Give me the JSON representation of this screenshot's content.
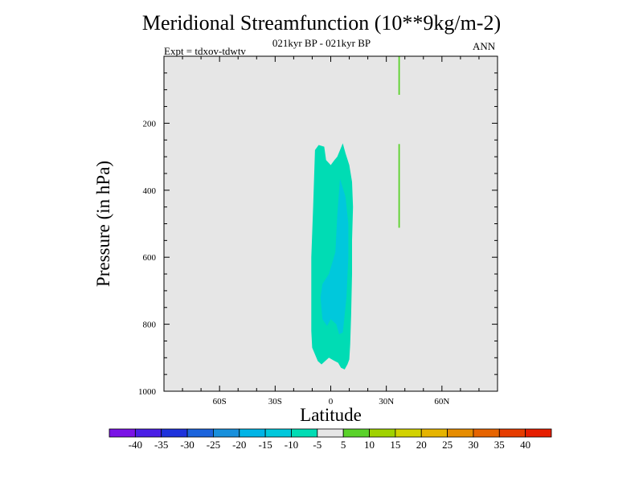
{
  "title": "Meridional Streamfunction (10**9kg/m-2)",
  "subtitle": "021kyr BP - 021kyr BP",
  "expt_label": "Expt = tdxov-tdwtv",
  "season": "ANN",
  "chart_data": {
    "type": "contour",
    "xlabel": "Latitude",
    "ylabel": "Pressure (in hPa)",
    "xlim": [
      -90,
      90
    ],
    "ylim": [
      1000,
      0
    ],
    "x_ticks": [
      {
        "value": -60,
        "label": "60S"
      },
      {
        "value": -30,
        "label": "30S"
      },
      {
        "value": 0,
        "label": "0"
      },
      {
        "value": 30,
        "label": "30N"
      },
      {
        "value": 60,
        "label": "60N"
      }
    ],
    "y_ticks": [
      {
        "value": 200,
        "label": "200"
      },
      {
        "value": 400,
        "label": "400"
      },
      {
        "value": 600,
        "label": "600"
      },
      {
        "value": 800,
        "label": "800"
      },
      {
        "value": 1000,
        "label": "1000"
      }
    ],
    "background_color": "#e6e6e6",
    "regions": [
      {
        "level_range": [
          -10,
          -5
        ],
        "color": "#00dcb4",
        "polygon": [
          [
            -8.5,
            280
          ],
          [
            -6.5,
            265
          ],
          [
            -3.5,
            270
          ],
          [
            -2.5,
            310
          ],
          [
            0,
            325
          ],
          [
            2,
            310
          ],
          [
            3.5,
            300
          ],
          [
            6.5,
            260
          ],
          [
            8,
            290
          ],
          [
            10,
            325
          ],
          [
            11.5,
            375
          ],
          [
            12,
            450
          ],
          [
            11.5,
            550
          ],
          [
            11.5,
            650
          ],
          [
            11,
            770
          ],
          [
            10.5,
            860
          ],
          [
            10,
            905
          ],
          [
            9,
            920
          ],
          [
            7.5,
            935
          ],
          [
            5.5,
            930
          ],
          [
            4,
            915
          ],
          [
            1.5,
            908
          ],
          [
            -1,
            900
          ],
          [
            -5,
            920
          ],
          [
            -7,
            910
          ],
          [
            -10,
            870
          ],
          [
            -10.5,
            820
          ],
          [
            -10.5,
            780
          ],
          [
            -10.5,
            600
          ],
          [
            -9.5,
            450
          ]
        ]
      },
      {
        "level_range": [
          -15,
          -10
        ],
        "color": "#00c8dc",
        "polygon": [
          [
            5,
            365
          ],
          [
            8,
            420
          ],
          [
            9.5,
            500
          ],
          [
            9.5,
            600
          ],
          [
            8.5,
            720
          ],
          [
            6.5,
            825
          ],
          [
            4.5,
            830
          ],
          [
            3,
            800
          ],
          [
            0,
            785
          ],
          [
            -2,
            805
          ],
          [
            -4.5,
            785
          ],
          [
            -5.5,
            720
          ],
          [
            -4.5,
            680
          ],
          [
            -1,
            650
          ],
          [
            2.5,
            585
          ],
          [
            3.5,
            475
          ]
        ]
      },
      {
        "level_range": [
          5,
          10
        ],
        "color": "#5ad22a",
        "polygon": [
          [
            36.5,
            0
          ],
          [
            37.3,
            0
          ],
          [
            37.3,
            115
          ],
          [
            36.5,
            115
          ]
        ]
      },
      {
        "level_range": [
          5,
          10
        ],
        "color": "#5ad22a",
        "polygon": [
          [
            36.5,
            262
          ],
          [
            37.3,
            262
          ],
          [
            37.3,
            512
          ],
          [
            36.5,
            512
          ]
        ]
      }
    ],
    "colorbar": {
      "labels": [
        "-40",
        "-35",
        "-30",
        "-25",
        "-20",
        "-15",
        "-10",
        "-5",
        "5",
        "10",
        "15",
        "20",
        "25",
        "30",
        "35",
        "40"
      ],
      "colors": [
        "#7a12e6",
        "#4a1ee6",
        "#1e32dc",
        "#1c64dc",
        "#1890dc",
        "#00b4e6",
        "#00c8dc",
        "#00dcb4",
        "#e6e6e6",
        "#5ad22a",
        "#a0d200",
        "#d2d200",
        "#e6b400",
        "#e68c00",
        "#e66400",
        "#e63c00",
        "#e61e00"
      ]
    }
  }
}
